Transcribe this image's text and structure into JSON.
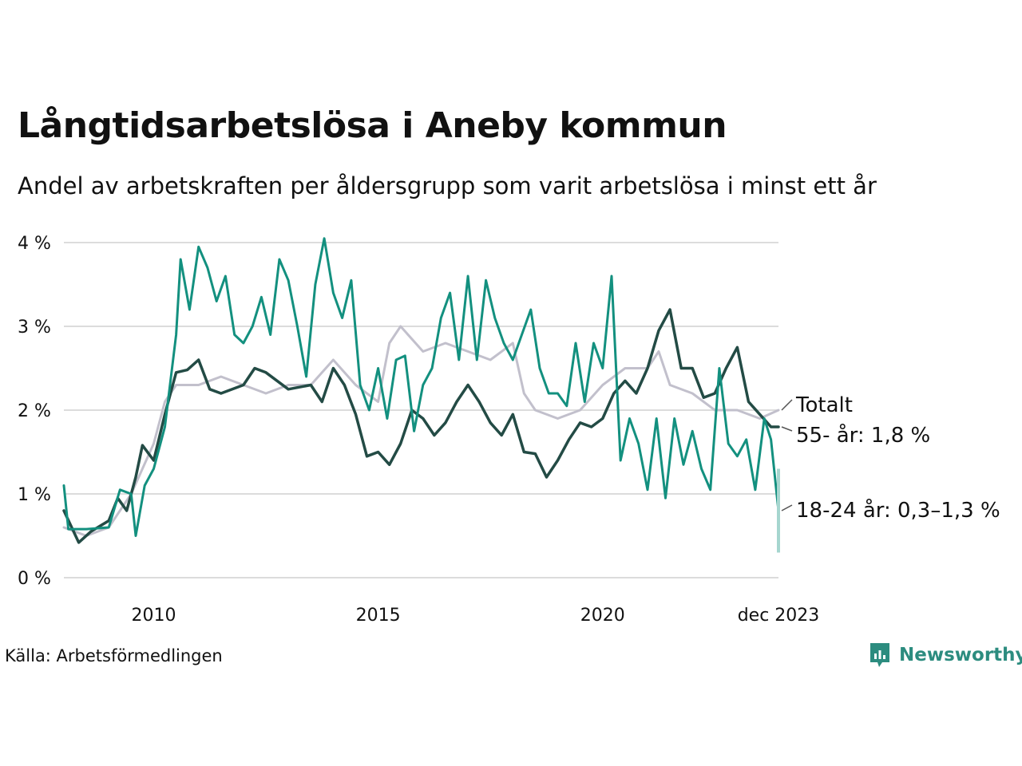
{
  "title": "Långtidsarbetslösa i Aneby kommun",
  "subtitle": "Andel av arbetskraften per åldersgrupp som varit arbetslösa i minst ett år",
  "source": "Källa: Arbetsförmedlingen",
  "brand": "Newsworthy",
  "colors": {
    "youth": "#13907f",
    "youth_range": "#a6d6cf",
    "senior": "#234b45",
    "total": "#c2c0cc",
    "grid": "#dcdcdc",
    "brand": "#2c8c7f"
  },
  "chart_data": {
    "type": "line",
    "title": "Långtidsarbetslösa i Aneby kommun",
    "xlabel": "",
    "ylabel": "",
    "x_range": [
      2008.0,
      2023.917
    ],
    "ylim": [
      0,
      4
    ],
    "yticks": [
      {
        "value": 0,
        "label": "0 %"
      },
      {
        "value": 1,
        "label": "1 %"
      },
      {
        "value": 2,
        "label": "2 %"
      },
      {
        "value": 3,
        "label": "3 %"
      },
      {
        "value": 4,
        "label": "4 %"
      }
    ],
    "xticks": [
      {
        "value": 2010,
        "label": "2010"
      },
      {
        "value": 2015,
        "label": "2015"
      },
      {
        "value": 2020,
        "label": "2020"
      },
      {
        "value": 2023.917,
        "label": "dec 2023"
      }
    ],
    "grid": true,
    "series": [
      {
        "name": "Totalt",
        "label": "Totalt",
        "key": "total",
        "points": [
          [
            2008.0,
            0.6
          ],
          [
            2008.5,
            0.5
          ],
          [
            2009.0,
            0.6
          ],
          [
            2009.5,
            1.0
          ],
          [
            2010.0,
            1.6
          ],
          [
            2010.25,
            2.1
          ],
          [
            2010.5,
            2.3
          ],
          [
            2011.0,
            2.3
          ],
          [
            2011.5,
            2.4
          ],
          [
            2012.0,
            2.3
          ],
          [
            2012.5,
            2.2
          ],
          [
            2013.0,
            2.3
          ],
          [
            2013.5,
            2.3
          ],
          [
            2014.0,
            2.6
          ],
          [
            2014.5,
            2.3
          ],
          [
            2015.0,
            2.1
          ],
          [
            2015.25,
            2.8
          ],
          [
            2015.5,
            3.0
          ],
          [
            2016.0,
            2.7
          ],
          [
            2016.5,
            2.8
          ],
          [
            2017.0,
            2.7
          ],
          [
            2017.5,
            2.6
          ],
          [
            2018.0,
            2.8
          ],
          [
            2018.25,
            2.2
          ],
          [
            2018.5,
            2.0
          ],
          [
            2019.0,
            1.9
          ],
          [
            2019.5,
            2.0
          ],
          [
            2020.0,
            2.3
          ],
          [
            2020.5,
            2.5
          ],
          [
            2021.0,
            2.5
          ],
          [
            2021.25,
            2.7
          ],
          [
            2021.5,
            2.3
          ],
          [
            2022.0,
            2.2
          ],
          [
            2022.5,
            2.0
          ],
          [
            2023.0,
            2.0
          ],
          [
            2023.5,
            1.9
          ],
          [
            2023.917,
            2.0
          ]
        ]
      },
      {
        "name": "55- år",
        "label": "55- år: 1,8 %",
        "key": "senior",
        "points": [
          [
            2008.0,
            0.8
          ],
          [
            2008.33,
            0.42
          ],
          [
            2008.6,
            0.55
          ],
          [
            2009.0,
            0.68
          ],
          [
            2009.2,
            0.95
          ],
          [
            2009.4,
            0.8
          ],
          [
            2009.6,
            1.2
          ],
          [
            2009.75,
            1.58
          ],
          [
            2010.0,
            1.4
          ],
          [
            2010.25,
            1.95
          ],
          [
            2010.5,
            2.45
          ],
          [
            2010.75,
            2.48
          ],
          [
            2011.0,
            2.6
          ],
          [
            2011.25,
            2.25
          ],
          [
            2011.5,
            2.2
          ],
          [
            2012.0,
            2.3
          ],
          [
            2012.25,
            2.5
          ],
          [
            2012.5,
            2.45
          ],
          [
            2013.0,
            2.25
          ],
          [
            2013.5,
            2.3
          ],
          [
            2013.75,
            2.1
          ],
          [
            2014.0,
            2.5
          ],
          [
            2014.25,
            2.3
          ],
          [
            2014.5,
            1.95
          ],
          [
            2014.75,
            1.45
          ],
          [
            2015.0,
            1.5
          ],
          [
            2015.25,
            1.35
          ],
          [
            2015.5,
            1.6
          ],
          [
            2015.75,
            2.0
          ],
          [
            2016.0,
            1.9
          ],
          [
            2016.25,
            1.7
          ],
          [
            2016.5,
            1.85
          ],
          [
            2016.75,
            2.1
          ],
          [
            2017.0,
            2.3
          ],
          [
            2017.25,
            2.1
          ],
          [
            2017.5,
            1.85
          ],
          [
            2017.75,
            1.7
          ],
          [
            2018.0,
            1.95
          ],
          [
            2018.25,
            1.5
          ],
          [
            2018.5,
            1.48
          ],
          [
            2018.75,
            1.2
          ],
          [
            2019.0,
            1.4
          ],
          [
            2019.25,
            1.65
          ],
          [
            2019.5,
            1.85
          ],
          [
            2019.75,
            1.8
          ],
          [
            2020.0,
            1.9
          ],
          [
            2020.25,
            2.2
          ],
          [
            2020.5,
            2.35
          ],
          [
            2020.75,
            2.2
          ],
          [
            2021.0,
            2.5
          ],
          [
            2021.25,
            2.95
          ],
          [
            2021.5,
            3.2
          ],
          [
            2021.75,
            2.5
          ],
          [
            2022.0,
            2.5
          ],
          [
            2022.25,
            2.15
          ],
          [
            2022.5,
            2.2
          ],
          [
            2022.75,
            2.5
          ],
          [
            2023.0,
            2.75
          ],
          [
            2023.25,
            2.1
          ],
          [
            2023.5,
            1.95
          ],
          [
            2023.75,
            1.8
          ],
          [
            2023.917,
            1.8
          ]
        ]
      },
      {
        "name": "18-24 år",
        "label": "18-24 år: 0,3–1,3 %",
        "key": "youth",
        "points": [
          [
            2008.0,
            1.1
          ],
          [
            2008.1,
            0.58
          ],
          [
            2008.5,
            0.58
          ],
          [
            2009.0,
            0.6
          ],
          [
            2009.25,
            1.05
          ],
          [
            2009.5,
            1.0
          ],
          [
            2009.6,
            0.5
          ],
          [
            2009.8,
            1.1
          ],
          [
            2010.0,
            1.3
          ],
          [
            2010.25,
            1.8
          ],
          [
            2010.5,
            2.9
          ],
          [
            2010.6,
            3.8
          ],
          [
            2010.8,
            3.2
          ],
          [
            2011.0,
            3.95
          ],
          [
            2011.2,
            3.7
          ],
          [
            2011.4,
            3.3
          ],
          [
            2011.6,
            3.6
          ],
          [
            2011.8,
            2.9
          ],
          [
            2012.0,
            2.8
          ],
          [
            2012.2,
            3.0
          ],
          [
            2012.4,
            3.35
          ],
          [
            2012.6,
            2.9
          ],
          [
            2012.8,
            3.8
          ],
          [
            2013.0,
            3.55
          ],
          [
            2013.2,
            3.0
          ],
          [
            2013.4,
            2.4
          ],
          [
            2013.6,
            3.5
          ],
          [
            2013.8,
            4.05
          ],
          [
            2014.0,
            3.4
          ],
          [
            2014.2,
            3.1
          ],
          [
            2014.4,
            3.55
          ],
          [
            2014.6,
            2.3
          ],
          [
            2014.8,
            2.0
          ],
          [
            2015.0,
            2.5
          ],
          [
            2015.2,
            1.9
          ],
          [
            2015.4,
            2.6
          ],
          [
            2015.6,
            2.65
          ],
          [
            2015.8,
            1.75
          ],
          [
            2016.0,
            2.3
          ],
          [
            2016.2,
            2.5
          ],
          [
            2016.4,
            3.1
          ],
          [
            2016.6,
            3.4
          ],
          [
            2016.8,
            2.6
          ],
          [
            2017.0,
            3.6
          ],
          [
            2017.2,
            2.6
          ],
          [
            2017.4,
            3.55
          ],
          [
            2017.6,
            3.1
          ],
          [
            2017.8,
            2.8
          ],
          [
            2018.0,
            2.6
          ],
          [
            2018.2,
            2.9
          ],
          [
            2018.4,
            3.2
          ],
          [
            2018.6,
            2.5
          ],
          [
            2018.8,
            2.2
          ],
          [
            2019.0,
            2.2
          ],
          [
            2019.2,
            2.05
          ],
          [
            2019.4,
            2.8
          ],
          [
            2019.6,
            2.1
          ],
          [
            2019.8,
            2.8
          ],
          [
            2020.0,
            2.5
          ],
          [
            2020.2,
            3.6
          ],
          [
            2020.4,
            1.4
          ],
          [
            2020.6,
            1.9
          ],
          [
            2020.8,
            1.6
          ],
          [
            2021.0,
            1.05
          ],
          [
            2021.2,
            1.9
          ],
          [
            2021.4,
            0.95
          ],
          [
            2021.6,
            1.9
          ],
          [
            2021.8,
            1.35
          ],
          [
            2022.0,
            1.75
          ],
          [
            2022.2,
            1.3
          ],
          [
            2022.4,
            1.05
          ],
          [
            2022.6,
            2.5
          ],
          [
            2022.8,
            1.6
          ],
          [
            2023.0,
            1.45
          ],
          [
            2023.2,
            1.65
          ],
          [
            2023.4,
            1.05
          ],
          [
            2023.6,
            1.9
          ],
          [
            2023.75,
            1.65
          ],
          [
            2023.917,
            0.8
          ]
        ],
        "range_last": {
          "x": 2023.917,
          "low": 0.3,
          "high": 1.3
        }
      }
    ]
  }
}
